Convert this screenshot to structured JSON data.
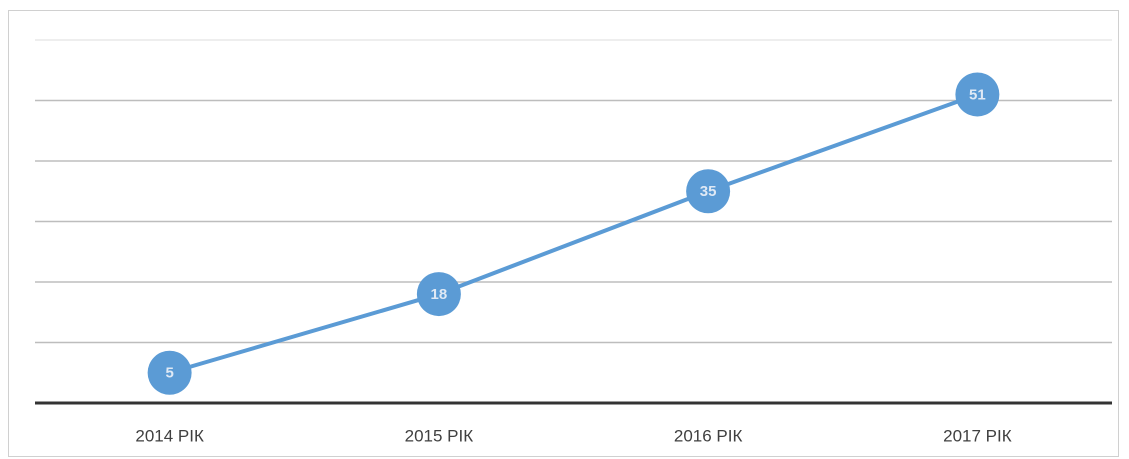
{
  "chart_data": {
    "type": "line",
    "categories": [
      "2014 РІК",
      "2015 РІК",
      "2016 РІК",
      "2017 РІК"
    ],
    "values": [
      5,
      18,
      35,
      51
    ],
    "color": "#5b9bd5",
    "ylim": [
      0,
      60
    ],
    "yticks": [
      0,
      10,
      20,
      30,
      40,
      50,
      60
    ],
    "grid": true
  }
}
